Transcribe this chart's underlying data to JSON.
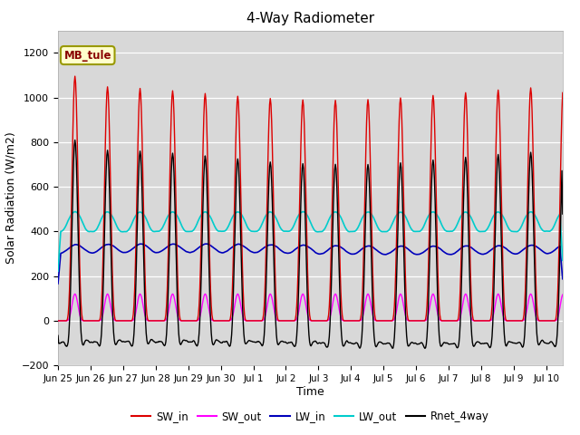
{
  "title": "4-Way Radiometer",
  "xlabel": "Time",
  "ylabel": "Solar Radiation (W/m2)",
  "site_label": "MB_tule",
  "ylim": [
    -200,
    1300
  ],
  "yticks": [
    -200,
    0,
    200,
    400,
    600,
    800,
    1000,
    1200
  ],
  "SW_in_peak": 1050,
  "SW_in_first_peak": 1095,
  "SW_out_peak": 120,
  "LW_in_base": 320,
  "LW_in_amplitude": 20,
  "LW_out_base": 400,
  "LW_out_amplitude": 90,
  "colors": {
    "SW_in": "#dd0000",
    "SW_out": "#ff00ff",
    "LW_in": "#0000bb",
    "LW_out": "#00cccc",
    "Rnet_4way": "#000000"
  },
  "x_tick_labels": [
    "Jun 25",
    "Jun 26",
    "Jun 27",
    "Jun 28",
    "Jun 29",
    "Jun 30",
    "Jul 1",
    "Jul 2",
    "Jul 3",
    "Jul 4",
    "Jul 5",
    "Jul 6",
    "Jul 7",
    "Jul 8",
    "Jul 9",
    "Jul 10"
  ],
  "legend_entries": [
    "SW_in",
    "SW_out",
    "LW_in",
    "LW_out",
    "Rnet_4way"
  ]
}
